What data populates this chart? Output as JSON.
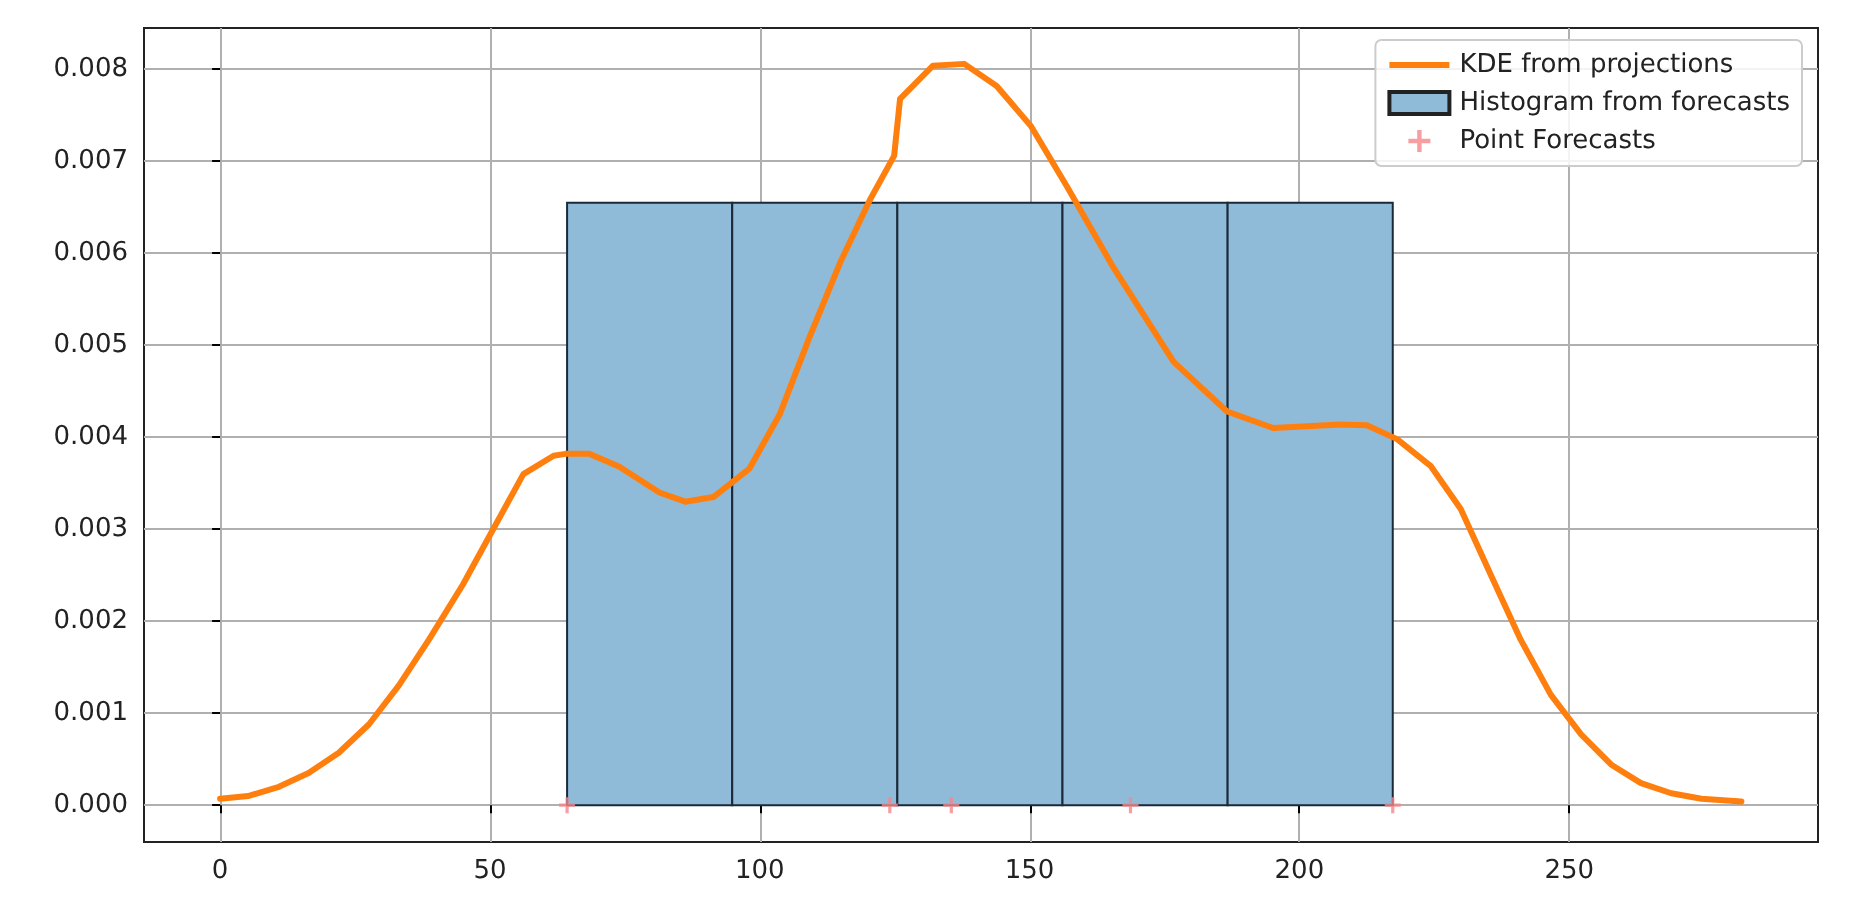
{
  "chart_data": {
    "type": "histogram",
    "xlim": [
      -14.1,
      296.1
    ],
    "xticks": [
      0,
      50,
      100,
      150,
      200,
      250
    ],
    "ylim": [
      -0.0004,
      0.00845
    ],
    "yticks": [
      {
        "value": 0,
        "label": "0.000"
      },
      {
        "value": 0.001,
        "label": "0.001"
      },
      {
        "value": 0.002,
        "label": "0.002"
      },
      {
        "value": 0.003,
        "label": "0.003"
      },
      {
        "value": 0.004,
        "label": "0.004"
      },
      {
        "value": 0.005,
        "label": "0.005"
      },
      {
        "value": 0.006,
        "label": "0.006"
      },
      {
        "value": 0.007,
        "label": "0.007"
      },
      {
        "value": 0.008,
        "label": "0.008"
      }
    ],
    "grid": true,
    "legend": "top right",
    "series": [
      {
        "type": "line",
        "name": "KDE from projections",
        "color": "#ff7f0e",
        "line_style": "solid",
        "marker": "none",
        "x": [
          0,
          5.2,
          10.9,
          16.4,
          22,
          27.6,
          33.1,
          38.7,
          45,
          50.6,
          56.2,
          61.8,
          64,
          68.4,
          74,
          81.4,
          86.2,
          91.4,
          98.1,
          103.7,
          109.3,
          114.9,
          120.4,
          124.9,
          126,
          132.1,
          137.9,
          143.9,
          150.3,
          156.9,
          165.5,
          176.7,
          186.6,
          195.2,
          207.6,
          212.5,
          218.1,
          224.3,
          229.9,
          235.5,
          241,
          246.6,
          252.2,
          257.8,
          263.3,
          268.9,
          274.5,
          281.9
        ],
        "values": [
          7e-05,
          0.0001,
          0.0002,
          0.00035,
          0.00057,
          0.00088,
          0.0013,
          0.0018,
          0.0024,
          0.003,
          0.0036,
          0.0038,
          0.00382,
          0.00382,
          0.00368,
          0.0034,
          0.0033,
          0.00335,
          0.00366,
          0.00425,
          0.0051,
          0.0059,
          0.00658,
          0.00706,
          0.00768,
          0.00804,
          0.00806,
          0.00782,
          0.00738,
          0.00673,
          0.00585,
          0.00482,
          0.00428,
          0.0041,
          0.00414,
          0.00413,
          0.00398,
          0.00369,
          0.00322,
          0.0025,
          0.0018,
          0.0012,
          0.00077,
          0.00044,
          0.00024,
          0.00013,
          7e-05,
          4e-05
        ]
      },
      {
        "name": "Histogram from forecasts",
        "color": "#8fbbd9",
        "bins": [
          64.3,
          94.9,
          125.5,
          156.1,
          186.7,
          217.3
        ],
        "values": [
          0.00655,
          0.00655,
          0.00655,
          0.00655,
          0.00655
        ]
      },
      {
        "type": "scatter",
        "name": "Point Forecasts",
        "color": "#f4868a",
        "marker": "cross",
        "x": [
          64.3,
          124.1,
          135.5,
          168.7,
          217.3
        ],
        "values": [
          0,
          0,
          0,
          0,
          0
        ]
      }
    ]
  }
}
